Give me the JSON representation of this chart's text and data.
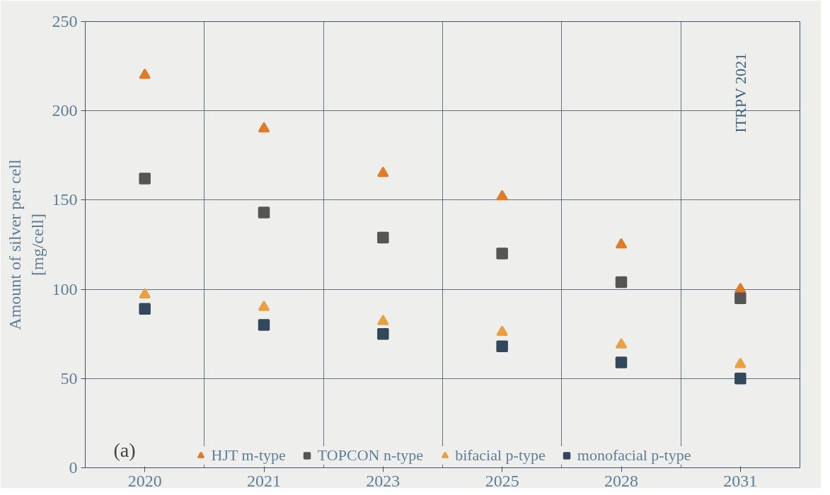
{
  "chart_data": {
    "type": "scatter",
    "ylabel": "Amount of silver per cell\n[mg/cell]",
    "categories": [
      "2020",
      "2021",
      "2023",
      "2025",
      "2028",
      "2031"
    ],
    "series": [
      {
        "name": "HJT m-type",
        "color": "#e07b28",
        "marker": "triangle",
        "values": [
          220,
          190,
          165,
          152,
          125,
          100
        ]
      },
      {
        "name": "TOPCON n-type",
        "color": "#555555",
        "marker": "square",
        "values": [
          162,
          143,
          129,
          120,
          104,
          95
        ]
      },
      {
        "name": "bifacial p-type",
        "color": "#e8a040",
        "marker": "triangle",
        "values": [
          97,
          90,
          82,
          76,
          69,
          58
        ]
      },
      {
        "name": "monofacial p-type",
        "color": "#34485c",
        "marker": "square",
        "values": [
          89,
          80,
          75,
          68,
          59,
          50
        ]
      }
    ],
    "ylim": [
      0,
      250
    ],
    "yticks": [
      0,
      50,
      100,
      150,
      200,
      250
    ],
    "grid": true,
    "legend": "bottom",
    "annotations": [
      "ITRPV 2021",
      "(a)"
    ]
  }
}
